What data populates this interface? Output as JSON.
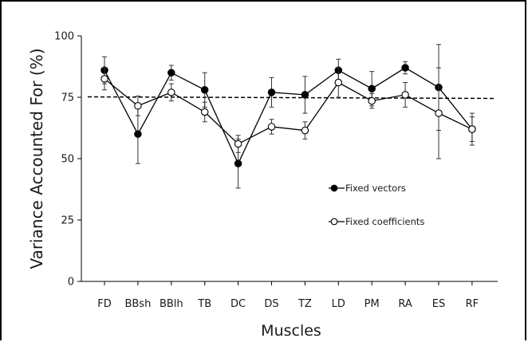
{
  "chart_data": {
    "type": "line",
    "title": "",
    "xlabel": "Muscles",
    "ylabel": "Variance Accounted For (%)",
    "categories": [
      "FD",
      "BBsh",
      "BBlh",
      "TB",
      "DC",
      "DS",
      "TZ",
      "LD",
      "PM",
      "RA",
      "ES",
      "RF"
    ],
    "ylim": [
      0,
      100
    ],
    "yticks": [
      0,
      25,
      50,
      75,
      100
    ],
    "grid": false,
    "legend_position": "right-center",
    "reference_line": {
      "y": 75,
      "style": "dashed",
      "color": "#000000"
    },
    "series": [
      {
        "name": "Fixed vectors",
        "marker": "filled-circle",
        "color": "#000000",
        "values": [
          86,
          60,
          85,
          78,
          48,
          77,
          76,
          86,
          78.5,
          87,
          79,
          62
        ],
        "error": [
          5.5,
          12,
          3,
          7,
          10,
          6,
          7.5,
          4.5,
          7,
          2.5,
          17.5,
          6.5
        ]
      },
      {
        "name": "Fixed coefficients",
        "marker": "open-circle",
        "color": "#000000",
        "values": [
          82.5,
          71.5,
          77,
          69,
          56,
          63,
          61.5,
          81,
          73.5,
          76,
          68.5,
          62
        ],
        "error": [
          4.5,
          4,
          3.5,
          4,
          3.5,
          3,
          3.5,
          6,
          3,
          5,
          18.5,
          5
        ]
      }
    ]
  }
}
